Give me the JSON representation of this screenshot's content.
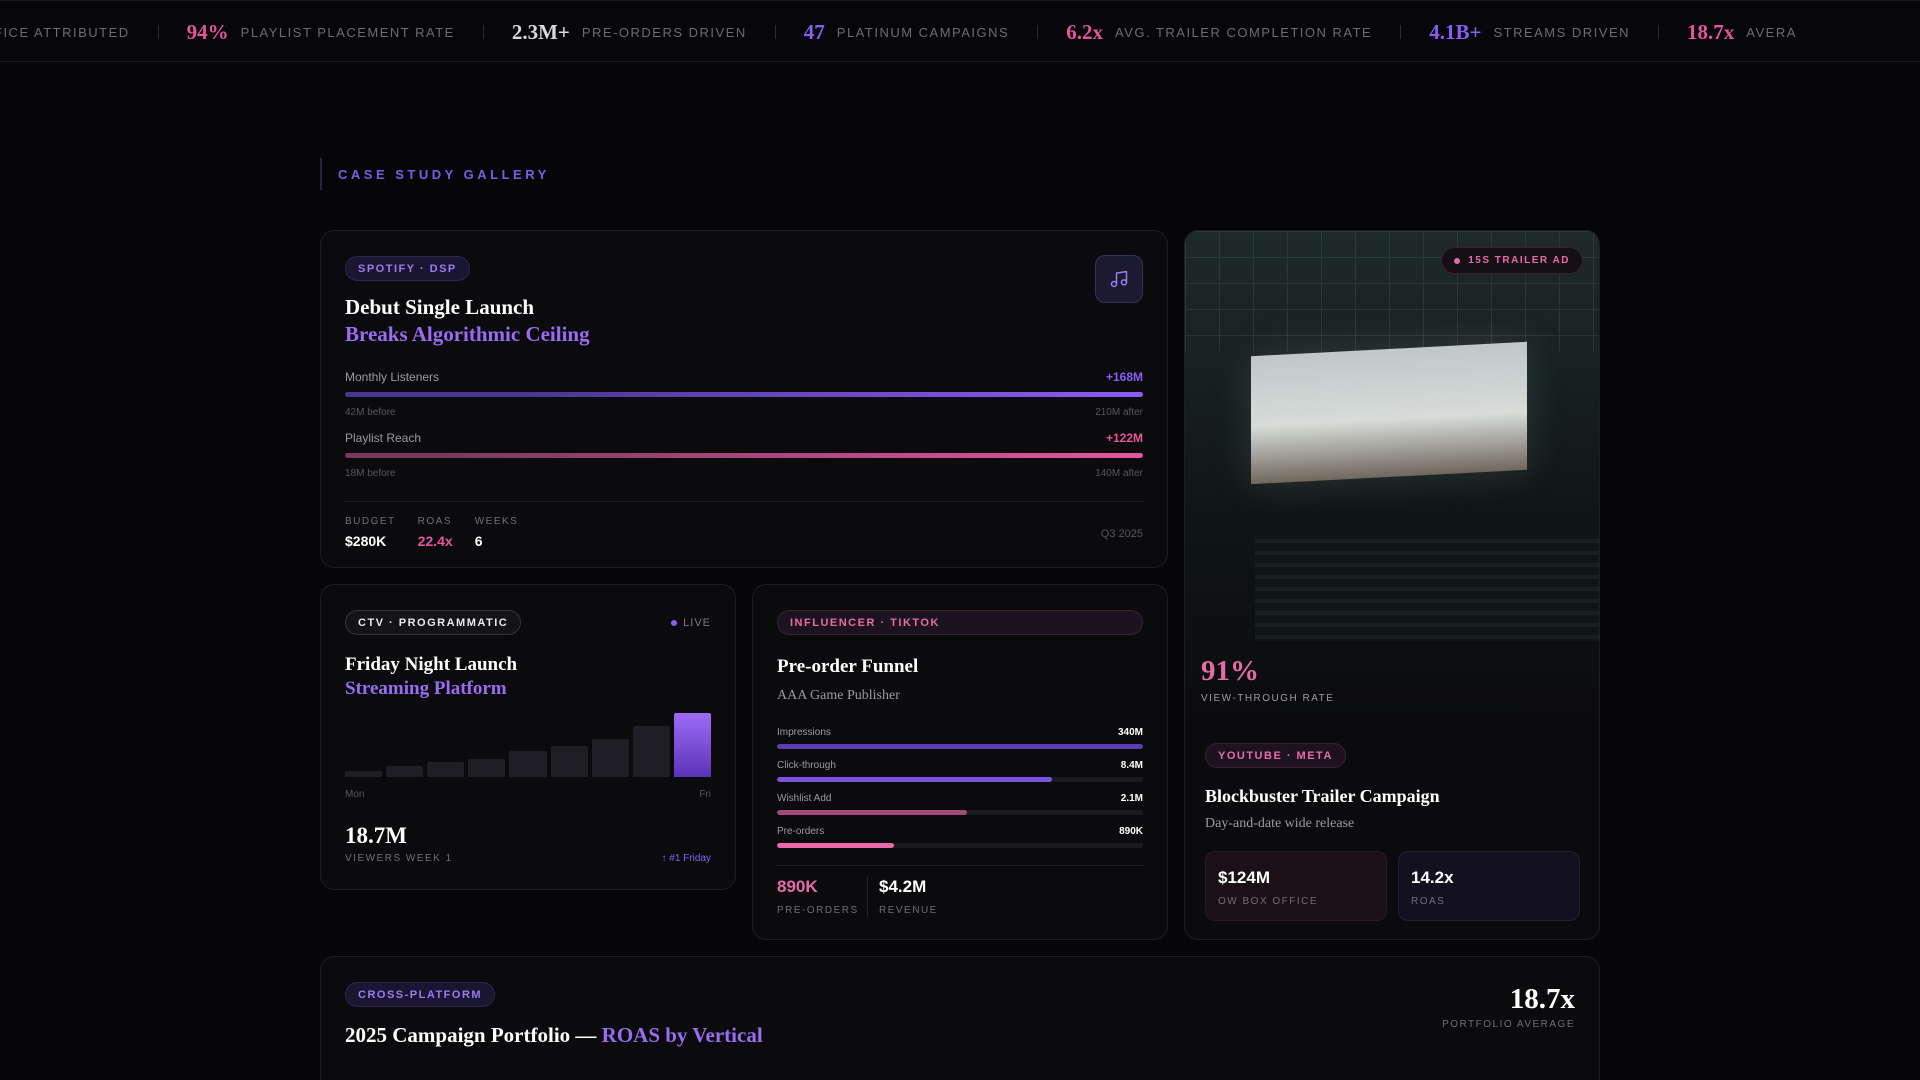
{
  "ticker": [
    {
      "num": "",
      "label": "FICE ATTRIBUTED",
      "color": ""
    },
    {
      "num": "94%",
      "label": "PLAYLIST PLACEMENT RATE",
      "color": "#e455a0"
    },
    {
      "num": "2.3M+",
      "label": "PRE-ORDERS DRIVEN",
      "color": "#d8d8de"
    },
    {
      "num": "47",
      "label": "PLATINUM CAMPAIGNS",
      "color": "#8b5cf6"
    },
    {
      "num": "6.2x",
      "label": "AVG. TRAILER COMPLETION RATE",
      "color": "#e455a0"
    },
    {
      "num": "4.1B+",
      "label": "STREAMS DRIVEN",
      "color": "#8b5cf6"
    },
    {
      "num": "18.7x",
      "label": "AVERA",
      "color": "#e455a0"
    }
  ],
  "section_label": "CASE STUDY GALLERY",
  "spotify_card": {
    "tag": "SPOTIFY · DSP",
    "title_line1": "Debut Single Launch",
    "title_line2": "Breaks Algorithmic Ceiling",
    "metrics": [
      {
        "name": "Monthly Listeners",
        "delta": "+168M",
        "before": "42M before",
        "after": "210M after",
        "before_pct": 20,
        "color": "#8b5cf6"
      },
      {
        "name": "Playlist Reach",
        "delta": "+122M",
        "before": "18M before",
        "after": "140M after",
        "before_pct": 13,
        "color": "#e455a0"
      }
    ],
    "stats": [
      {
        "key": "BUDGET",
        "value": "$280K",
        "color": "#ffffff"
      },
      {
        "key": "ROAS",
        "value": "22.4x",
        "color": "#e455a0"
      },
      {
        "key": "WEEKS",
        "value": "6",
        "color": "#ffffff"
      }
    ],
    "date": "Q3 2025"
  },
  "ctv_card": {
    "tag": "CTV · PROGRAMMATIC",
    "live": "LIVE",
    "title_line1": "Friday Night Launch",
    "title_line2": "Streaming Platform",
    "bars": [
      0.1,
      0.17,
      0.24,
      0.28,
      0.4,
      0.48,
      0.6,
      0.8,
      1.0
    ],
    "axis_start": "Mon",
    "axis_end": "Fri",
    "value": "18.7M",
    "caption": "VIEWERS WEEK 1",
    "rank": "↑ #1 Friday"
  },
  "funnel_card": {
    "tag": "INFLUENCER · TIKTOK",
    "title": "Pre-order Funnel",
    "subtitle": "AAA Game Publisher",
    "steps": [
      {
        "name": "Impressions",
        "value": "340M",
        "pct": 100,
        "color": "#5b3fb0"
      },
      {
        "name": "Click-through",
        "value": "8.4M",
        "pct": 75,
        "color": "#7b52e0"
      },
      {
        "name": "Wishlist Add",
        "value": "2.1M",
        "pct": 52,
        "color": "#a34878"
      },
      {
        "name": "Pre-orders",
        "value": "890K",
        "pct": 32,
        "color": "#e86aa8"
      }
    ],
    "stats": [
      {
        "value": "890K",
        "key": "PRE-ORDERS",
        "color": "#e86aa8"
      },
      {
        "value": "$4.2M",
        "key": "REVENUE",
        "color": "#ffffff"
      }
    ]
  },
  "trailer_card": {
    "badge": "15S TRAILER AD",
    "vtr": "91%",
    "vtr_caption": "VIEW-THROUGH RATE",
    "tag": "YOUTUBE · META",
    "title": "Blockbuster Trailer Campaign",
    "subtitle": "Day-and-date wide release",
    "kpis": [
      {
        "value": "$124M",
        "key": "OW BOX OFFICE",
        "bg": "#1a1016",
        "border": "#2a1a24"
      },
      {
        "value": "14.2x",
        "key": "ROAS",
        "bg": "#131120",
        "border": "#221e34"
      }
    ]
  },
  "portfolio_card": {
    "tag": "CROSS-PLATFORM",
    "title_main": "2025 Campaign Portfolio — ",
    "title_accent": "ROAS by Vertical",
    "value": "18.7x",
    "caption": "PORTFOLIO AVERAGE"
  }
}
